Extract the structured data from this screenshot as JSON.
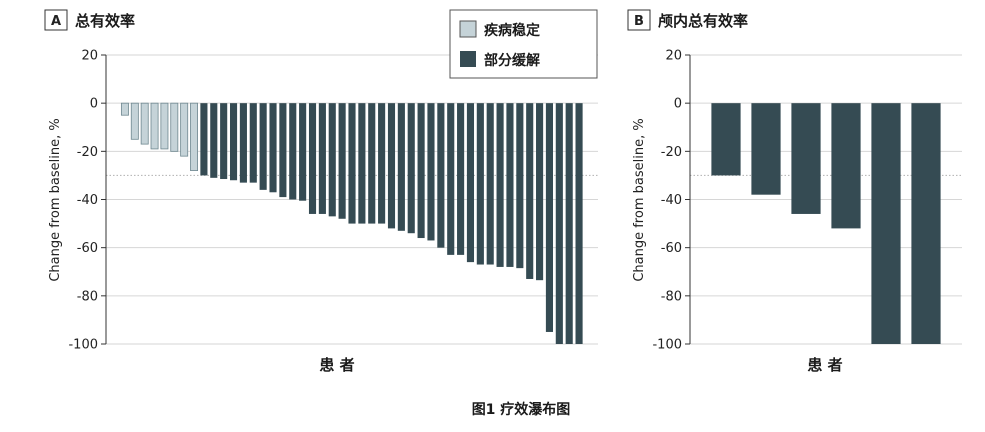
{
  "caption": "图1 疗效瀑布图",
  "colors": {
    "stable": "#c5d3d8",
    "partial": "#354b53",
    "stable_edge": "#6f8890"
  },
  "chart_data": [
    {
      "type": "bar",
      "panel": "A",
      "title": "总有效率",
      "xlabel": "患 者",
      "ylabel": "Change from baseline, %",
      "ylim": [
        -100,
        20
      ],
      "yticks": [
        20,
        0,
        -20,
        -40,
        -60,
        -80,
        -100
      ],
      "reference_line": -30,
      "grid": true,
      "legend_position": "top-center",
      "legend": [
        {
          "name": "疾病稳定",
          "color": "#c5d3d8"
        },
        {
          "name": "部分缓解",
          "color": "#354b53"
        }
      ],
      "series": [
        {
          "name": "疾病稳定",
          "values": [
            -5,
            -15,
            -17,
            -19,
            -19,
            -20,
            -22,
            -28
          ]
        },
        {
          "name": "部分缓解",
          "values": [
            -30,
            -31,
            -31.5,
            -32,
            -33,
            -33,
            -36,
            -37,
            -39,
            -40,
            -40.5,
            -46,
            -46,
            -47,
            -48,
            -50,
            -50,
            -50,
            -50,
            -52,
            -53,
            -54,
            -56,
            -57,
            -60,
            -63,
            -63,
            -66,
            -67,
            -67,
            -68,
            -68,
            -68.5,
            -73,
            -73.5,
            -95,
            -100,
            -100,
            -100
          ]
        }
      ]
    },
    {
      "type": "bar",
      "panel": "B",
      "title": "颅内总有效率",
      "xlabel": "患 者",
      "ylabel": "Change from baseline, %",
      "ylim": [
        -100,
        20
      ],
      "yticks": [
        20,
        0,
        -20,
        -40,
        -60,
        -80,
        -100
      ],
      "reference_line": -30,
      "grid": true,
      "series": [
        {
          "name": "部分缓解",
          "values": [
            -30,
            -38,
            -46,
            -52,
            -100,
            -100
          ]
        }
      ]
    }
  ]
}
